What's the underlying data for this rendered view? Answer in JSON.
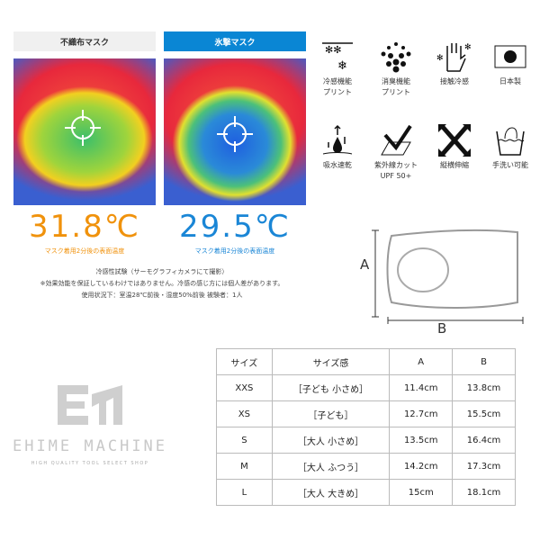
{
  "comparison": {
    "left": {
      "label": "不織布マスク",
      "temp": "31.8℃",
      "caption": "マスク着用2分後の表面温度",
      "color": "#f0920c"
    },
    "right": {
      "label": "氷撃マスク",
      "temp": "29.5℃",
      "caption": "マスク着用2分後の表面温度",
      "color": "#1a86d6"
    },
    "notes": [
      "冷感性試験（サーモグラフィカメラにて撮影）",
      "※効果効能を保証しているわけではありません。冷感の感じ方には個人差があります。",
      "使用状況下：室温28℃前後・湿度50%前後 被験者：1人"
    ]
  },
  "features": [
    {
      "icon": "snowflake-icon",
      "label": "冷感機能\nプリント"
    },
    {
      "icon": "deodorant-dots-icon",
      "label": "消臭機能\nプリント"
    },
    {
      "icon": "cool-touch-hand-icon",
      "label": "接触冷感"
    },
    {
      "icon": "japan-flag-icon",
      "label": "日本製"
    },
    {
      "icon": "water-absorb-icon",
      "label": "吸水速乾"
    },
    {
      "icon": "uv-cut-icon",
      "label": "紫外線カット\nUPF 50+"
    },
    {
      "icon": "stretch-arrows-icon",
      "label": "縦横伸縮"
    },
    {
      "icon": "hand-wash-icon",
      "label": "手洗い可能"
    }
  ],
  "diagram": {
    "a": "A",
    "b": "B"
  },
  "logo": {
    "name": "EHIME MACHINE",
    "tagline": "HIGH QUALITY TOOL SELECT SHOP"
  },
  "size_table": {
    "headers": [
      "サイズ",
      "サイズ感",
      "A",
      "B"
    ],
    "rows": [
      [
        "XXS",
        "［子ども 小さめ］",
        "11.4cm",
        "13.8cm"
      ],
      [
        "XS",
        "［子ども］",
        "12.7cm",
        "15.5cm"
      ],
      [
        "S",
        "［大人 小さめ］",
        "13.5cm",
        "16.4cm"
      ],
      [
        "M",
        "［大人 ふつう］",
        "14.2cm",
        "17.3cm"
      ],
      [
        "L",
        "［大人 大きめ］",
        "15cm",
        "18.1cm"
      ]
    ]
  }
}
